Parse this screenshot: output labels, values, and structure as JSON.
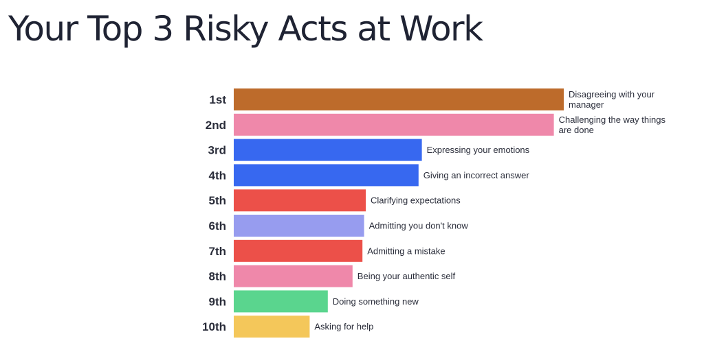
{
  "title": "Your Top 3 Risky Acts at Work",
  "chart_data": {
    "type": "bar",
    "orientation": "horizontal",
    "title": "Your Top 3 Risky Acts at Work",
    "xlabel": "",
    "ylabel": "",
    "grid": false,
    "legend": "none",
    "categories": [
      "1st",
      "2nd",
      "3rd",
      "4th",
      "5th",
      "6th",
      "7th",
      "8th",
      "9th",
      "10th"
    ],
    "values": [
      100,
      97,
      57,
      56,
      40,
      39.5,
      39,
      36,
      28.5,
      23
    ],
    "bar_labels": [
      [
        "Disagreeing with your",
        "manager"
      ],
      [
        "Challenging the way things",
        "are done"
      ],
      [
        "Expressing your emotions"
      ],
      [
        "Giving an incorrect answer"
      ],
      [
        "Clarifying expectations"
      ],
      [
        "Admitting you don't know"
      ],
      [
        "Admitting a mistake"
      ],
      [
        "Being your authentic self"
      ],
      [
        "Doing something new"
      ],
      [
        "Asking for help"
      ]
    ],
    "colors": [
      "#bd6b2b",
      "#ef88aa",
      "#3768f0",
      "#3768f0",
      "#ec5049",
      "#979cef",
      "#ec5049",
      "#ef88aa",
      "#5ad58e",
      "#f4c75a"
    ],
    "xlim": [
      0,
      100
    ]
  }
}
